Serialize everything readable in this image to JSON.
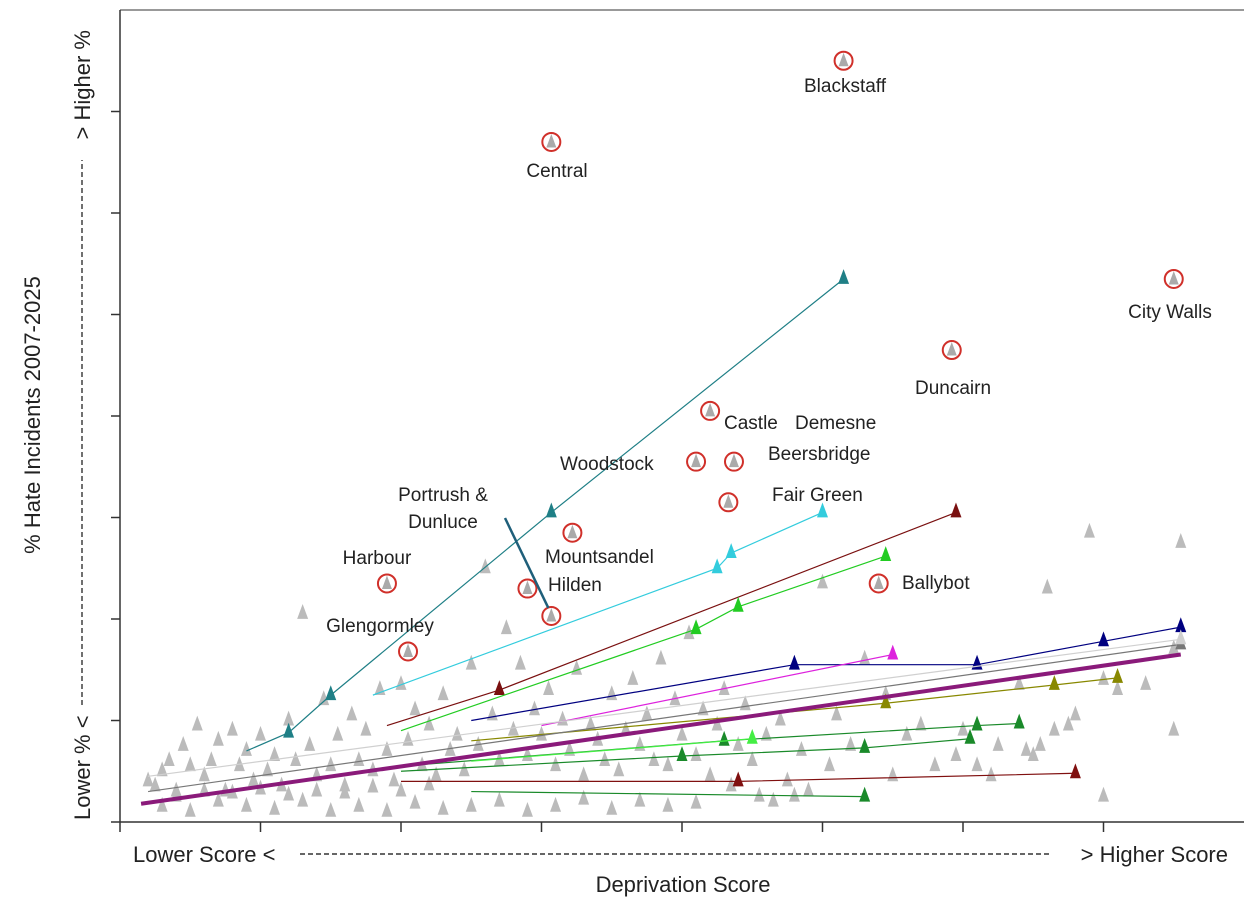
{
  "chart_data": {
    "type": "scatter",
    "xlabel": "Deprivation Score",
    "ylabel": "% Hate Incidents 2007-2025",
    "x_axis_text": {
      "low": "Lower Score <",
      "high": "> Higher Score"
    },
    "y_axis_text": {
      "low": "Lower % <",
      "high": "> Higher %"
    },
    "xlim": [
      0,
      8
    ],
    "ylim": [
      0,
      8
    ],
    "grid": false,
    "colors": {
      "background_points": "#bbbbbb",
      "highlight_ring": "#d0302a",
      "overall_trend": "#8a1a7a"
    },
    "labelled_areas": [
      {
        "name": "Blackstaff",
        "x": 5.15,
        "y": 7.5
      },
      {
        "name": "Central",
        "x": 3.07,
        "y": 6.7
      },
      {
        "name": "City Walls",
        "x": 7.5,
        "y": 5.35
      },
      {
        "name": "Duncairn",
        "x": 5.92,
        "y": 4.65
      },
      {
        "name": "Castle",
        "x": 4.2,
        "y": 4.05
      },
      {
        "name": "Demesne",
        "x": 4.37,
        "y": 3.55
      },
      {
        "name": "Woodstock",
        "x": 4.1,
        "y": 3.55
      },
      {
        "name": "Beersbridge",
        "x": 4.33,
        "y": 3.15
      },
      {
        "name": "Fair Green",
        "x": 4.33,
        "y": 3.15
      },
      {
        "name": "Mountsandel",
        "x": 3.22,
        "y": 2.85
      },
      {
        "name": "Hilden",
        "x": 2.9,
        "y": 2.3
      },
      {
        "name": "Portrush & Dunluce",
        "x": 3.07,
        "y": 2.03
      },
      {
        "name": "Harbour",
        "x": 1.9,
        "y": 2.35
      },
      {
        "name": "Glengormley",
        "x": 2.05,
        "y": 1.68
      },
      {
        "name": "Ballybot",
        "x": 5.4,
        "y": 2.35
      }
    ],
    "series": [
      {
        "color": "#1f7f86",
        "points": [
          [
            0.9,
            0.7
          ],
          [
            1.2,
            0.88
          ],
          [
            1.5,
            1.25
          ],
          [
            3.07,
            3.05
          ],
          [
            5.15,
            5.35
          ]
        ]
      },
      {
        "color": "#33ccdd",
        "points": [
          [
            1.8,
            1.25
          ],
          [
            4.25,
            2.5
          ],
          [
            4.35,
            2.65
          ],
          [
            5.0,
            3.05
          ]
        ]
      },
      {
        "color": "#7a1010",
        "points": [
          [
            1.9,
            0.95
          ],
          [
            2.7,
            1.3
          ],
          [
            5.95,
            3.05
          ]
        ]
      },
      {
        "color": "#22cc22",
        "points": [
          [
            2.0,
            0.9
          ],
          [
            4.1,
            1.9
          ],
          [
            4.4,
            2.12
          ],
          [
            5.45,
            2.62
          ]
        ]
      },
      {
        "color": "#000080",
        "points": [
          [
            2.5,
            1.0
          ],
          [
            4.8,
            1.55
          ],
          [
            6.1,
            1.55
          ],
          [
            7.0,
            1.78
          ],
          [
            7.55,
            1.92
          ]
        ]
      },
      {
        "color": "#dd22dd",
        "points": [
          [
            3.0,
            0.95
          ],
          [
            5.5,
            1.65
          ]
        ]
      },
      {
        "color": "#888800",
        "points": [
          [
            2.5,
            0.8
          ],
          [
            5.45,
            1.17
          ],
          [
            6.65,
            1.35
          ],
          [
            7.1,
            1.42
          ]
        ]
      },
      {
        "color": "#1a8a2a",
        "points": [
          [
            2.0,
            0.55
          ],
          [
            4.3,
            0.8
          ],
          [
            6.1,
            0.95
          ],
          [
            6.4,
            0.97
          ]
        ]
      },
      {
        "color": "#1a8a2a",
        "points": [
          [
            2.0,
            0.5
          ],
          [
            4.0,
            0.65
          ],
          [
            5.3,
            0.73
          ],
          [
            6.05,
            0.82
          ]
        ]
      },
      {
        "color": "#801010",
        "points": [
          [
            2.0,
            0.4
          ],
          [
            4.4,
            0.4
          ],
          [
            6.8,
            0.48
          ]
        ]
      },
      {
        "color": "#1a8a2a",
        "points": [
          [
            2.5,
            0.3
          ],
          [
            5.3,
            0.25
          ]
        ]
      },
      {
        "color": "#44ee44",
        "points": [
          [
            2.5,
            0.6
          ],
          [
            4.5,
            0.82
          ]
        ]
      },
      {
        "color": "#777777",
        "points": [
          [
            0.2,
            0.3
          ],
          [
            7.55,
            1.75
          ]
        ]
      },
      {
        "color": "#d0d0d0",
        "points": [
          [
            0.2,
            0.45
          ],
          [
            7.55,
            1.8
          ]
        ]
      }
    ],
    "overall_trend": {
      "color": "#8a1a7a",
      "from": [
        0.15,
        0.18
      ],
      "to": [
        7.55,
        1.65
      ]
    },
    "background_points": [
      [
        0.2,
        0.4
      ],
      [
        0.25,
        0.35
      ],
      [
        0.3,
        0.5
      ],
      [
        0.35,
        0.6
      ],
      [
        0.4,
        0.3
      ],
      [
        0.45,
        0.75
      ],
      [
        0.5,
        0.55
      ],
      [
        0.55,
        0.95
      ],
      [
        0.6,
        0.45
      ],
      [
        0.65,
        0.6
      ],
      [
        0.7,
        0.8
      ],
      [
        0.75,
        0.3
      ],
      [
        0.8,
        0.9
      ],
      [
        0.85,
        0.55
      ],
      [
        0.9,
        0.7
      ],
      [
        0.95,
        0.4
      ],
      [
        1.0,
        0.85
      ],
      [
        1.05,
        0.5
      ],
      [
        1.1,
        0.65
      ],
      [
        1.15,
        0.35
      ],
      [
        1.2,
        1.0
      ],
      [
        1.25,
        0.6
      ],
      [
        1.3,
        2.05
      ],
      [
        1.35,
        0.75
      ],
      [
        1.4,
        0.45
      ],
      [
        1.45,
        1.2
      ],
      [
        1.5,
        0.55
      ],
      [
        1.55,
        0.85
      ],
      [
        1.6,
        0.35
      ],
      [
        1.65,
        1.05
      ],
      [
        1.7,
        0.6
      ],
      [
        1.75,
        0.9
      ],
      [
        1.8,
        0.5
      ],
      [
        1.85,
        1.3
      ],
      [
        1.9,
        0.7
      ],
      [
        1.95,
        0.4
      ],
      [
        2.0,
        1.35
      ],
      [
        2.05,
        0.8
      ],
      [
        2.1,
        1.1
      ],
      [
        2.15,
        0.55
      ],
      [
        2.2,
        0.95
      ],
      [
        2.25,
        0.45
      ],
      [
        2.3,
        1.25
      ],
      [
        2.35,
        0.7
      ],
      [
        2.4,
        0.85
      ],
      [
        2.45,
        0.5
      ],
      [
        2.5,
        1.55
      ],
      [
        2.55,
        0.75
      ],
      [
        2.6,
        2.5
      ],
      [
        2.65,
        1.05
      ],
      [
        2.7,
        0.6
      ],
      [
        2.75,
        1.9
      ],
      [
        2.8,
        0.9
      ],
      [
        2.85,
        1.55
      ],
      [
        2.9,
        0.65
      ],
      [
        2.95,
        1.1
      ],
      [
        3.0,
        0.85
      ],
      [
        3.05,
        1.3
      ],
      [
        3.1,
        0.55
      ],
      [
        3.15,
        1.0
      ],
      [
        3.2,
        0.7
      ],
      [
        3.25,
        1.5
      ],
      [
        3.3,
        0.45
      ],
      [
        3.35,
        0.95
      ],
      [
        3.4,
        0.8
      ],
      [
        3.45,
        0.6
      ],
      [
        3.5,
        1.25
      ],
      [
        3.55,
        0.5
      ],
      [
        3.6,
        0.9
      ],
      [
        3.65,
        1.4
      ],
      [
        3.7,
        0.75
      ],
      [
        3.75,
        1.05
      ],
      [
        3.8,
        0.6
      ],
      [
        3.85,
        1.6
      ],
      [
        3.9,
        0.55
      ],
      [
        3.95,
        1.2
      ],
      [
        4.0,
        0.85
      ],
      [
        4.05,
        1.85
      ],
      [
        4.1,
        0.65
      ],
      [
        4.15,
        1.1
      ],
      [
        4.2,
        0.45
      ],
      [
        4.25,
        0.95
      ],
      [
        4.3,
        1.3
      ],
      [
        4.35,
        0.35
      ],
      [
        4.4,
        0.75
      ],
      [
        4.45,
        1.15
      ],
      [
        4.5,
        0.6
      ],
      [
        4.55,
        0.25
      ],
      [
        4.6,
        0.85
      ],
      [
        4.65,
        0.2
      ],
      [
        4.7,
        1.0
      ],
      [
        4.75,
        0.4
      ],
      [
        4.8,
        0.25
      ],
      [
        4.85,
        0.7
      ],
      [
        4.9,
        0.3
      ],
      [
        5.0,
        2.35
      ],
      [
        5.05,
        0.55
      ],
      [
        5.1,
        1.05
      ],
      [
        5.2,
        0.75
      ],
      [
        5.3,
        1.6
      ],
      [
        5.45,
        1.25
      ],
      [
        5.5,
        0.45
      ],
      [
        5.6,
        0.85
      ],
      [
        5.7,
        0.95
      ],
      [
        5.8,
        0.55
      ],
      [
        5.95,
        0.65
      ],
      [
        6.0,
        0.9
      ],
      [
        6.1,
        0.55
      ],
      [
        6.2,
        0.45
      ],
      [
        6.25,
        0.75
      ],
      [
        6.4,
        1.35
      ],
      [
        6.45,
        0.7
      ],
      [
        6.5,
        0.65
      ],
      [
        6.55,
        0.75
      ],
      [
        6.6,
        2.3
      ],
      [
        6.65,
        0.9
      ],
      [
        6.75,
        0.95
      ],
      [
        6.8,
        1.05
      ],
      [
        6.9,
        2.85
      ],
      [
        7.0,
        1.4
      ],
      [
        7.0,
        0.25
      ],
      [
        7.1,
        1.3
      ],
      [
        7.3,
        1.35
      ],
      [
        7.5,
        0.9
      ],
      [
        7.55,
        2.75
      ],
      [
        7.5,
        1.7
      ],
      [
        0.3,
        0.15
      ],
      [
        0.5,
        0.1
      ],
      [
        0.7,
        0.2
      ],
      [
        0.9,
        0.15
      ],
      [
        1.1,
        0.12
      ],
      [
        1.3,
        0.2
      ],
      [
        1.5,
        0.1
      ],
      [
        1.7,
        0.15
      ],
      [
        1.9,
        0.1
      ],
      [
        2.1,
        0.18
      ],
      [
        2.3,
        0.12
      ],
      [
        2.5,
        0.15
      ],
      [
        2.7,
        0.2
      ],
      [
        2.9,
        0.1
      ],
      [
        3.1,
        0.15
      ],
      [
        3.3,
        0.22
      ],
      [
        3.5,
        0.12
      ],
      [
        3.7,
        0.2
      ],
      [
        3.9,
        0.15
      ],
      [
        4.1,
        0.18
      ],
      [
        0.4,
        0.25
      ],
      [
        0.6,
        0.3
      ],
      [
        0.8,
        0.28
      ],
      [
        1.0,
        0.32
      ],
      [
        1.2,
        0.26
      ],
      [
        1.4,
        0.3
      ],
      [
        1.6,
        0.28
      ],
      [
        1.8,
        0.34
      ],
      [
        2.0,
        0.3
      ],
      [
        2.2,
        0.36
      ]
    ]
  }
}
